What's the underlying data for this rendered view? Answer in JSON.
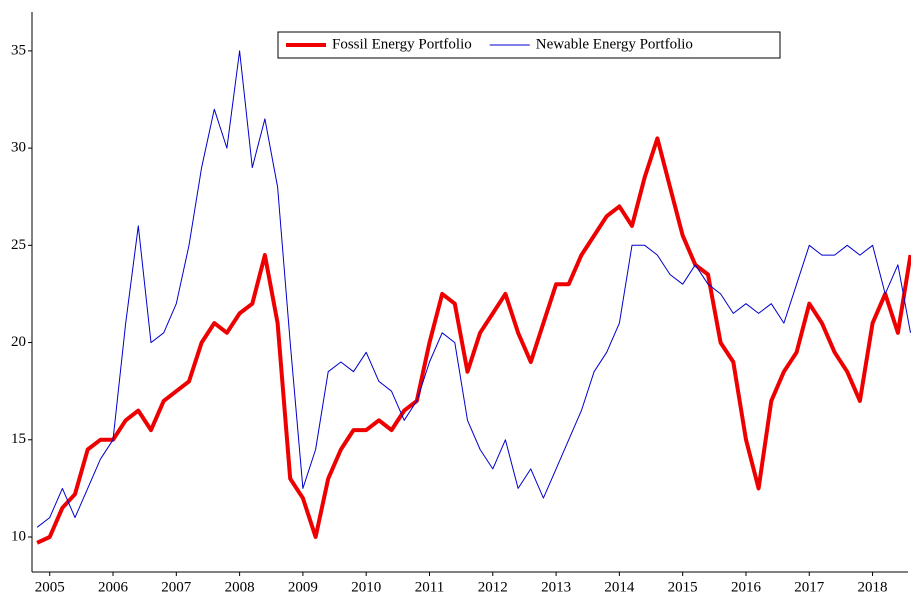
{
  "chart_data": {
    "type": "line",
    "x": [
      2004.8,
      2005.0,
      2005.2,
      2005.4,
      2005.6,
      2005.8,
      2006.0,
      2006.2,
      2006.4,
      2006.6,
      2006.8,
      2007.0,
      2007.2,
      2007.4,
      2007.6,
      2007.8,
      2008.0,
      2008.2,
      2008.4,
      2008.6,
      2008.8,
      2009.0,
      2009.2,
      2009.4,
      2009.6,
      2009.8,
      2010.0,
      2010.2,
      2010.4,
      2010.6,
      2010.8,
      2011.0,
      2011.2,
      2011.4,
      2011.6,
      2011.8,
      2012.0,
      2012.2,
      2012.4,
      2012.6,
      2012.8,
      2013.0,
      2013.2,
      2013.4,
      2013.6,
      2013.8,
      2014.0,
      2014.2,
      2014.4,
      2014.6,
      2014.8,
      2015.0,
      2015.2,
      2015.4,
      2015.6,
      2015.8,
      2016.0,
      2016.2,
      2016.4,
      2016.6,
      2016.8,
      2017.0,
      2017.2,
      2017.4,
      2017.6,
      2017.8,
      2018.0,
      2018.2,
      2018.4,
      2018.6
    ],
    "series": [
      {
        "name": "Fossil Energy Portfolio",
        "color": "#ee0000",
        "width": 4,
        "values": [
          9.7,
          10.0,
          11.5,
          12.2,
          14.5,
          15.0,
          15.0,
          16.0,
          16.5,
          15.5,
          17.0,
          17.5,
          18.0,
          20.0,
          21.0,
          20.5,
          21.5,
          22.0,
          24.5,
          21.0,
          13.0,
          12.0,
          10.0,
          13.0,
          14.5,
          15.5,
          15.5,
          16.0,
          15.5,
          16.5,
          17.0,
          20.0,
          22.5,
          22.0,
          18.5,
          20.5,
          21.5,
          22.5,
          20.5,
          19.0,
          21.0,
          23.0,
          23.0,
          24.5,
          25.5,
          26.5,
          27.0,
          26.0,
          28.5,
          30.5,
          28.0,
          25.5,
          24.0,
          23.5,
          20.0,
          19.0,
          15.0,
          12.5,
          17.0,
          18.5,
          19.5,
          22.0,
          21.0,
          19.5,
          18.5,
          17.0,
          21.0,
          22.5,
          20.5,
          24.5
        ]
      },
      {
        "name": "Newable Energy Portfolio",
        "color": "#0000cc",
        "width": 1,
        "values": [
          10.5,
          11.0,
          12.5,
          11.0,
          12.5,
          14.0,
          15.0,
          21.0,
          26.0,
          20.0,
          20.5,
          22.0,
          25.0,
          29.0,
          32.0,
          30.0,
          35.0,
          29.0,
          31.5,
          28.0,
          20.0,
          12.5,
          14.5,
          18.5,
          19.0,
          18.5,
          19.5,
          18.0,
          17.5,
          16.0,
          17.0,
          19.0,
          20.5,
          20.0,
          16.0,
          14.5,
          13.5,
          15.0,
          12.5,
          13.5,
          12.0,
          13.5,
          15.0,
          16.5,
          18.5,
          19.5,
          21.0,
          25.0,
          25.0,
          24.5,
          23.5,
          23.0,
          24.0,
          23.0,
          22.5,
          21.5,
          22.0,
          21.5,
          22.0,
          21.0,
          23.0,
          25.0,
          24.5,
          24.5,
          25.0,
          24.5,
          25.0,
          22.5,
          24.0,
          20.5
        ]
      }
    ],
    "xlim": [
      2004.72,
      2018.56
    ],
    "xticks": [
      2005,
      2006,
      2007,
      2008,
      2009,
      2010,
      2011,
      2012,
      2013,
      2014,
      2015,
      2016,
      2017,
      2018
    ],
    "ylim": [
      8.2,
      37
    ],
    "yticks": [
      10,
      15,
      20,
      25,
      30,
      35
    ],
    "legend": "upper center",
    "grid": false
  }
}
